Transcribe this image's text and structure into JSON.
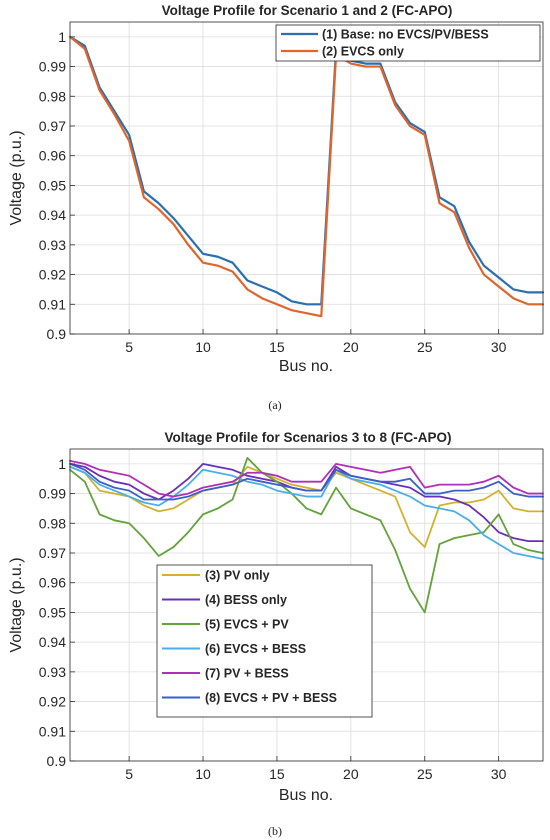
{
  "chart_data": [
    {
      "type": "line",
      "title": "Voltage Profile for Scenario 1 and 2 (FC-APO)",
      "xlabel": "Bus no.",
      "ylabel": "Voltage (p.u.)",
      "caption": "(a)",
      "xlim": [
        1,
        33
      ],
      "ylim": [
        0.9,
        1.005
      ],
      "xticks": [
        5,
        10,
        15,
        20,
        25,
        30
      ],
      "yticks": [
        0.9,
        0.91,
        0.92,
        0.93,
        0.94,
        0.95,
        0.96,
        0.97,
        0.98,
        0.99,
        1
      ],
      "grid": true,
      "legend_position": "top-right",
      "x": [
        1,
        2,
        3,
        4,
        5,
        6,
        7,
        8,
        9,
        10,
        11,
        12,
        13,
        14,
        15,
        16,
        17,
        18,
        19,
        20,
        21,
        22,
        23,
        24,
        25,
        26,
        27,
        28,
        29,
        30,
        31,
        32,
        33
      ],
      "series": [
        {
          "name": "(1) Base: no EVCS/PV/BESS",
          "color": "#2a6fb0",
          "values": [
            1.0,
            0.997,
            0.983,
            0.975,
            0.967,
            0.948,
            0.944,
            0.939,
            0.933,
            0.927,
            0.926,
            0.924,
            0.918,
            0.916,
            0.914,
            0.911,
            0.91,
            0.91,
            0.996,
            0.992,
            0.991,
            0.991,
            0.978,
            0.971,
            0.968,
            0.946,
            0.943,
            0.931,
            0.923,
            0.919,
            0.915,
            0.914,
            0.914
          ]
        },
        {
          "name": "(2) EVCS only",
          "color": "#e0642c",
          "values": [
            1.0,
            0.996,
            0.982,
            0.974,
            0.965,
            0.946,
            0.942,
            0.937,
            0.93,
            0.924,
            0.923,
            0.921,
            0.915,
            0.912,
            0.91,
            0.908,
            0.907,
            0.906,
            0.994,
            0.991,
            0.99,
            0.99,
            0.977,
            0.97,
            0.967,
            0.944,
            0.941,
            0.929,
            0.92,
            0.916,
            0.912,
            0.91,
            0.91
          ]
        }
      ]
    },
    {
      "type": "line",
      "title": "Voltage Profile for Scenarios 3 to 8 (FC-APO)",
      "xlabel": "Bus no.",
      "ylabel": "Voltage (p.u.)",
      "caption": "(b)",
      "xlim": [
        1,
        33
      ],
      "ylim": [
        0.9,
        1.005
      ],
      "xticks": [
        5,
        10,
        15,
        20,
        25,
        30
      ],
      "yticks": [
        0.9,
        0.91,
        0.92,
        0.93,
        0.94,
        0.95,
        0.96,
        0.97,
        0.98,
        0.99,
        1
      ],
      "grid": true,
      "legend_position": "bottom-left",
      "x": [
        1,
        2,
        3,
        4,
        5,
        6,
        7,
        8,
        9,
        10,
        11,
        12,
        13,
        14,
        15,
        16,
        17,
        18,
        19,
        20,
        21,
        22,
        23,
        24,
        25,
        26,
        27,
        28,
        29,
        30,
        31,
        32,
        33
      ],
      "series": [
        {
          "name": "(3) PV only",
          "color": "#d4b12c",
          "values": [
            0.999,
            0.997,
            0.991,
            0.99,
            0.989,
            0.986,
            0.984,
            0.985,
            0.988,
            0.991,
            0.992,
            0.993,
            0.999,
            0.997,
            0.995,
            0.993,
            0.992,
            0.991,
            0.997,
            0.995,
            0.993,
            0.991,
            0.989,
            0.977,
            0.972,
            0.986,
            0.987,
            0.987,
            0.988,
            0.991,
            0.985,
            0.984,
            0.984
          ]
        },
        {
          "name": "(4) BESS only",
          "color": "#6a2fb8",
          "values": [
            1.0,
            0.999,
            0.996,
            0.994,
            0.993,
            0.99,
            0.988,
            0.991,
            0.995,
            1.0,
            0.999,
            0.998,
            0.996,
            0.995,
            0.994,
            0.992,
            0.991,
            0.991,
            0.999,
            0.996,
            0.995,
            0.994,
            0.993,
            0.992,
            0.989,
            0.989,
            0.988,
            0.986,
            0.982,
            0.977,
            0.975,
            0.974,
            0.974
          ]
        },
        {
          "name": "(5) EVCS + PV",
          "color": "#62a33a",
          "values": [
            0.998,
            0.994,
            0.983,
            0.981,
            0.98,
            0.975,
            0.969,
            0.972,
            0.977,
            0.983,
            0.985,
            0.988,
            1.002,
            0.997,
            0.994,
            0.99,
            0.985,
            0.983,
            0.992,
            0.985,
            0.983,
            0.981,
            0.971,
            0.958,
            0.95,
            0.973,
            0.975,
            0.976,
            0.977,
            0.983,
            0.973,
            0.971,
            0.97
          ]
        },
        {
          "name": "(6) EVCS + BESS",
          "color": "#4aaee8",
          "values": [
            0.999,
            0.997,
            0.993,
            0.991,
            0.989,
            0.987,
            0.986,
            0.989,
            0.993,
            0.998,
            0.997,
            0.996,
            0.994,
            0.993,
            0.991,
            0.99,
            0.989,
            0.989,
            0.998,
            0.995,
            0.994,
            0.993,
            0.991,
            0.989,
            0.986,
            0.985,
            0.984,
            0.981,
            0.976,
            0.973,
            0.97,
            0.969,
            0.968
          ]
        },
        {
          "name": "(7) PV + BESS",
          "color": "#b02fb8",
          "values": [
            1.001,
            1.0,
            0.998,
            0.997,
            0.996,
            0.993,
            0.99,
            0.989,
            0.99,
            0.992,
            0.993,
            0.994,
            0.997,
            0.997,
            0.996,
            0.994,
            0.994,
            0.994,
            1.0,
            0.999,
            0.998,
            0.997,
            0.998,
            0.999,
            0.992,
            0.993,
            0.993,
            0.993,
            0.994,
            0.996,
            0.992,
            0.99,
            0.99
          ]
        },
        {
          "name": "(8) EVCS + PV + BESS",
          "color": "#3a5fc8",
          "values": [
            1.0,
            0.998,
            0.994,
            0.992,
            0.991,
            0.988,
            0.988,
            0.988,
            0.989,
            0.991,
            0.992,
            0.993,
            0.995,
            0.994,
            0.993,
            0.992,
            0.991,
            0.991,
            0.998,
            0.996,
            0.995,
            0.994,
            0.994,
            0.995,
            0.99,
            0.99,
            0.991,
            0.991,
            0.992,
            0.994,
            0.99,
            0.989,
            0.989
          ]
        }
      ]
    }
  ]
}
